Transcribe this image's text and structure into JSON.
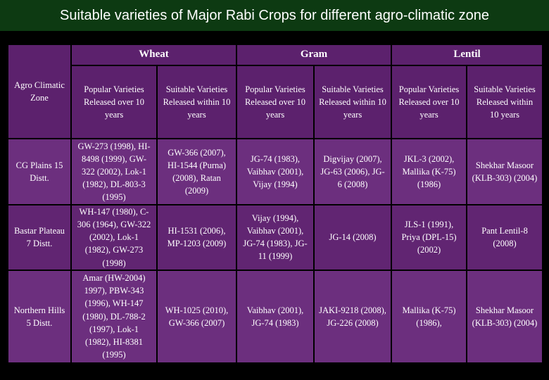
{
  "title": "Suitable varieties of Major Rabi Crops for different agro-climatic zone",
  "table": {
    "corner": "Agro Climatic Zone",
    "groups": [
      "Wheat",
      "Gram",
      "Lentil"
    ],
    "subheaders": [
      "Popular Varieties Released over 10 years",
      "Suitable Varieties Released within 10 years",
      "Popular Varieties Released over 10 years",
      "Suitable Varieties Released within 10 years",
      "Popular Varieties Released over 10 years",
      "Suitable Varieties Released within 10 years"
    ],
    "rows": [
      [
        "CG Plains 15 Distt.",
        "GW-273 (1998), HI-8498 (1999), GW-322 (2002), Lok-1 (1982), DL-803-3 (1995)",
        "GW-366 (2007), HI-1544 (Purna) (2008), Ratan (2009)",
        "JG-74 (1983), Vaibhav (2001), Vijay (1994)",
        "Digvijay (2007), JG-63 (2006), JG-6 (2008)",
        "JKL-3 (2002), Mallika (K-75) (1986)",
        "Shekhar Masoor (KLB-303) (2004)"
      ],
      [
        "Bastar Plateau 7 Distt.",
        "WH-147 (1980), C-306 (1964), GW-322 (2002), Lok-1 (1982), GW-273 (1998)",
        "HI-1531 (2006), MP-1203 (2009)",
        "Vijay (1994), Vaibhav (2001), JG-74 (1983), JG-11 (1999)",
        "JG-14 (2008)",
        "JLS-1 (1991), Priya (DPL-15) (2002)",
        "Pant Lentil-8 (2008)"
      ],
      [
        "Northern Hills 5 Distt.",
        "Amar (HW-2004) 1997), PBW-343 (1996), WH-147 (1980), DL-788-2 (1997), Lok-1 (1982), HI-8381 (1995)",
        "WH-1025 (2010), GW-366 (2007)",
        "Vaibhav (2001), JG-74 (1983)",
        "JAKI-9218 (2008), JG-226 (2008)",
        "Mallika (K-75) (1986),",
        "Shekhar Masoor (KLB-303) (2004)"
      ]
    ]
  }
}
